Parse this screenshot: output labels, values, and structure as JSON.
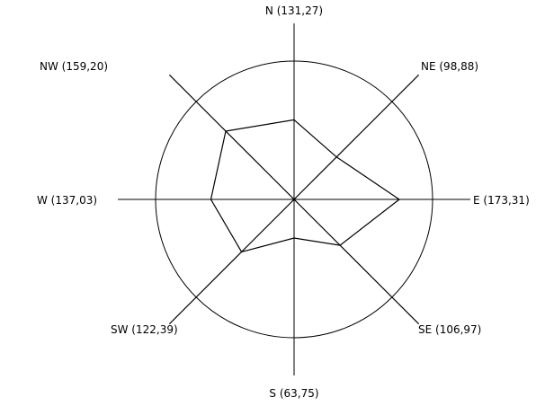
{
  "chart_data": {
    "type": "radar",
    "title": "",
    "directions": [
      "N",
      "NE",
      "E",
      "SE",
      "S",
      "SW",
      "W",
      "NW"
    ],
    "values": [
      131.27,
      98.88,
      173.31,
      106.97,
      63.75,
      122.39,
      137.03,
      159.2
    ],
    "labels": [
      "N (131,27)",
      "NE (98,88)",
      "E (173,31)",
      "SE (106,97)",
      "S (63,75)",
      "SW (122,39)",
      "W (137,03)",
      "NW (159,20)"
    ],
    "rmax": 227,
    "reference_circle": true
  }
}
